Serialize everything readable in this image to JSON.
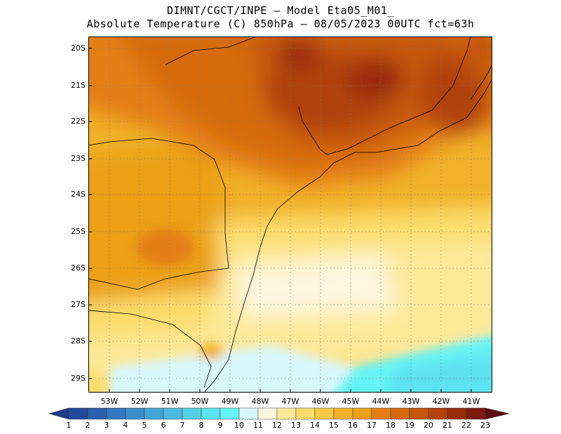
{
  "header": {
    "line1": "DIMNT/CGCT/INPE –  Model Eta05_M01_",
    "line2": "Absolute Temperature (C) 850hPa –  08/05/2023 00UTC fct=63h"
  },
  "map": {
    "lat_labels": [
      "20S",
      "21S",
      "22S",
      "23S",
      "24S",
      "25S",
      "26S",
      "27S",
      "28S",
      "29S"
    ],
    "lon_labels": [
      "53W",
      "52W",
      "51W",
      "50W",
      "49W",
      "48W",
      "47W",
      "46W",
      "45W",
      "44W",
      "43W",
      "42W",
      "41W"
    ]
  },
  "colorbar": {
    "labels": [
      "1",
      "2",
      "3",
      "4",
      "5",
      "6",
      "7",
      "8",
      "9",
      "10",
      "11",
      "12",
      "13",
      "14",
      "15",
      "16",
      "17",
      "18",
      "19",
      "20",
      "21",
      "22",
      "23"
    ],
    "colors": [
      "#1c3a8a",
      "#23499e",
      "#2a5fae",
      "#3477bf",
      "#3d8dcc",
      "#45a4d6",
      "#4cb9df",
      "#55cfe6",
      "#5de3ee",
      "#66f3f6",
      "#d8f7fb",
      "#fef6dd",
      "#fde99a",
      "#fbdc6c",
      "#f6c947",
      "#f1b12a",
      "#eba018",
      "#e37e12",
      "#d66a0f",
      "#c6560c",
      "#b1420b",
      "#9a2c0d",
      "#7f1a11",
      "#5e0d12"
    ]
  }
}
